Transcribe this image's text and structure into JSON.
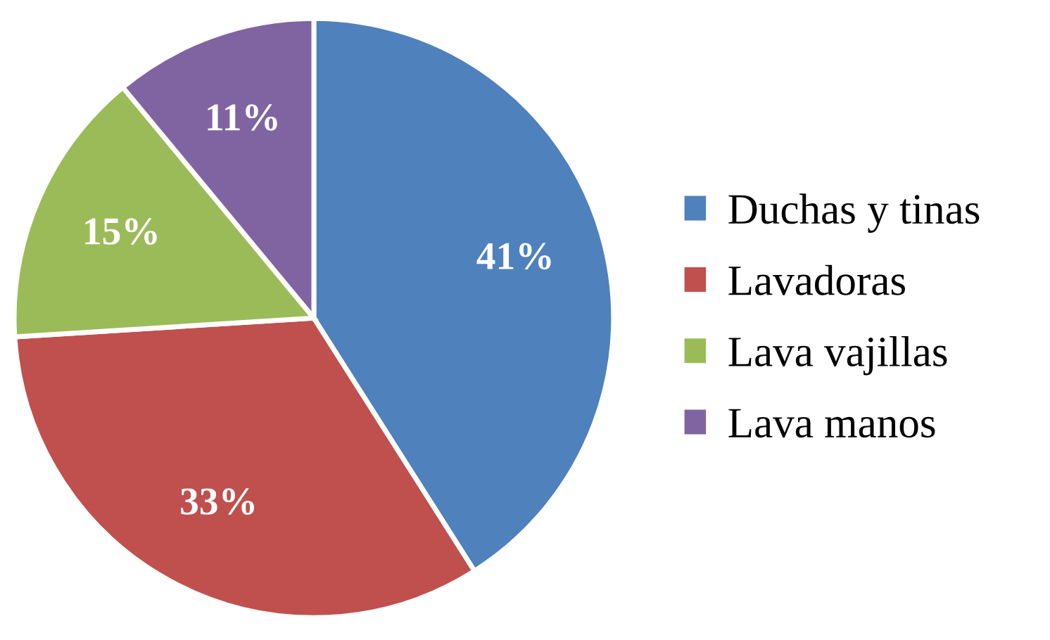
{
  "chart_data": {
    "type": "pie",
    "categories": [
      "Duchas y tinas",
      "Lavadoras",
      "Lava vajillas",
      "Lava manos"
    ],
    "values": [
      41,
      33,
      15,
      11
    ],
    "colors": [
      "#4f81bd",
      "#c0504d",
      "#9bbb59",
      "#8064a2"
    ],
    "value_labels": [
      "41%",
      "33%",
      "15%",
      "11%"
    ],
    "legend": "right"
  }
}
